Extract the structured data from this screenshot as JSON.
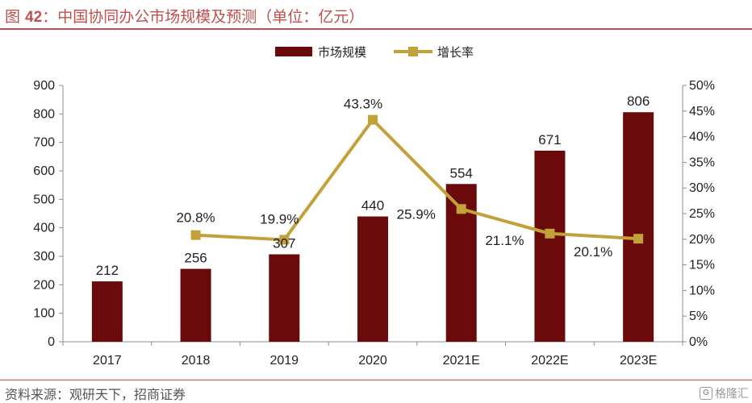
{
  "header": {
    "title_prefix": "图 ",
    "title_number": "42",
    "title_text": "：中国协同办公市场规模及预测（单位：亿元）"
  },
  "footer": {
    "source": "资料来源：观研天下，招商证券",
    "watermark": "格隆汇"
  },
  "colors": {
    "bar": "#6b0a0a",
    "line": "#c3a13a",
    "accent": "#c0504d"
  },
  "chart_data": {
    "type": "bar",
    "categories": [
      "2017",
      "2018",
      "2019",
      "2020",
      "2021E",
      "2022E",
      "2023E"
    ],
    "series": [
      {
        "name": "市场规模",
        "type": "bar",
        "axis": "left",
        "values": [
          212,
          256,
          307,
          440,
          554,
          671,
          806
        ],
        "labels": [
          "212",
          "256",
          "307",
          "440",
          "554",
          "671",
          "806"
        ]
      },
      {
        "name": "增长率",
        "type": "line",
        "axis": "right",
        "values": [
          null,
          20.8,
          19.9,
          43.3,
          25.9,
          21.1,
          20.1
        ],
        "labels": [
          "",
          "20.8%",
          "19.9%",
          "43.3%",
          "25.9%",
          "21.1%",
          "20.1%"
        ]
      }
    ],
    "ylim_left": [
      0,
      900
    ],
    "yticks_left": [
      "0",
      "100",
      "200",
      "300",
      "400",
      "500",
      "600",
      "700",
      "800",
      "900"
    ],
    "ylim_right": [
      0,
      50
    ],
    "yticks_right": [
      "0%",
      "5%",
      "10%",
      "15%",
      "20%",
      "25%",
      "30%",
      "35%",
      "40%",
      "45%",
      "50%"
    ],
    "legend_position": "top-center",
    "grid": false
  }
}
